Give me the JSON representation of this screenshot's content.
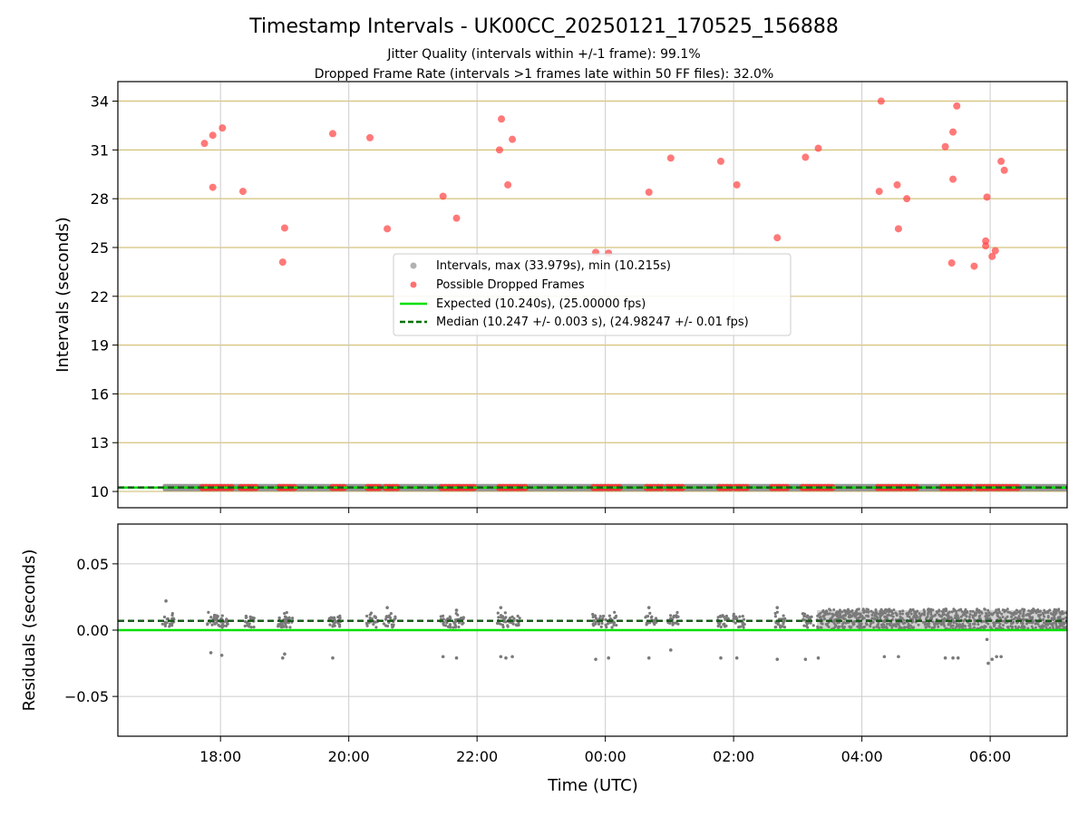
{
  "chart_data": [
    {
      "type": "scatter",
      "title": "Timestamp Intervals - UK00CC_20250121_170525_156888",
      "subtitle_lines": [
        "Jitter Quality (intervals within +/-1 frame): 99.1%",
        "Dropped Frame Rate (intervals >1 frames late within 50 FF files): 32.0%"
      ],
      "ylabel": "Intervals (seconds)",
      "xlim": [
        16.4,
        31.2
      ],
      "ylim": [
        9.0,
        35.2
      ],
      "yticks": [
        10,
        13,
        16,
        19,
        22,
        25,
        28,
        31,
        34
      ],
      "ytick_labels": [
        "10",
        "13",
        "16",
        "19",
        "22",
        "25",
        "28",
        "31",
        "34"
      ],
      "xticks": [
        18,
        20,
        22,
        24,
        26,
        28,
        30
      ],
      "grid": "on",
      "grid_color_y": "#d4c27a",
      "grid_color_x": "#cccccc",
      "legend": {
        "placement": "center",
        "entries": [
          {
            "label": "Intervals, max (33.979s), min (10.215s)",
            "color": "#9e9e9e",
            "marker": "dot"
          },
          {
            "label": "Possible Dropped Frames",
            "color": "#ff4d4d",
            "marker": "dot"
          },
          {
            "label": "Expected (10.240s), (25.00000 fps)",
            "color": "#00e000",
            "marker": "solid-line"
          },
          {
            "label": "Median (10.247 +/- 0.003 s), (24.98247 +/- 0.01 fps)",
            "color": "#007000",
            "marker": "dashed-line"
          }
        ]
      },
      "expected_line": 10.24,
      "median_line": 10.247,
      "normal_band": {
        "from": 17.1,
        "to": 31.2,
        "y": 10.24
      },
      "dropped_frames": [
        [
          17.75,
          31.4
        ],
        [
          17.88,
          31.9
        ],
        [
          18.03,
          32.35
        ],
        [
          17.88,
          28.7
        ],
        [
          18.35,
          28.45
        ],
        [
          18.97,
          24.1
        ],
        [
          19.0,
          26.2
        ],
        [
          19.75,
          32.0
        ],
        [
          20.33,
          31.75
        ],
        [
          20.6,
          26.15
        ],
        [
          21.47,
          28.15
        ],
        [
          21.68,
          26.8
        ],
        [
          22.35,
          31.0
        ],
        [
          22.38,
          32.9
        ],
        [
          22.48,
          28.85
        ],
        [
          22.55,
          31.65
        ],
        [
          23.85,
          24.7
        ],
        [
          24.05,
          24.65
        ],
        [
          24.68,
          28.4
        ],
        [
          25.02,
          30.5
        ],
        [
          25.8,
          30.3
        ],
        [
          26.05,
          28.85
        ],
        [
          26.68,
          25.6
        ],
        [
          27.12,
          30.55
        ],
        [
          27.32,
          31.1
        ],
        [
          28.3,
          34.0
        ],
        [
          28.27,
          28.45
        ],
        [
          28.55,
          28.85
        ],
        [
          28.57,
          26.15
        ],
        [
          28.7,
          28.0
        ],
        [
          29.3,
          31.2
        ],
        [
          29.4,
          24.05
        ],
        [
          29.42,
          32.1
        ],
        [
          29.42,
          29.2
        ],
        [
          29.48,
          33.7
        ],
        [
          29.75,
          23.85
        ],
        [
          29.95,
          28.1
        ],
        [
          29.93,
          25.1
        ],
        [
          29.93,
          25.4
        ],
        [
          30.03,
          24.45
        ],
        [
          30.08,
          24.8
        ],
        [
          30.17,
          30.3
        ],
        [
          30.22,
          29.75
        ]
      ],
      "dropped_band_segments": [
        [
          17.72,
          18.22
        ],
        [
          18.32,
          18.55
        ],
        [
          18.92,
          19.15
        ],
        [
          19.75,
          19.97
        ],
        [
          20.3,
          20.52
        ],
        [
          20.58,
          20.8
        ],
        [
          21.45,
          21.72
        ],
        [
          21.72,
          21.95
        ],
        [
          22.35,
          22.8
        ],
        [
          23.82,
          24.22
        ],
        [
          24.65,
          24.92
        ],
        [
          24.97,
          25.2
        ],
        [
          25.78,
          25.97
        ],
        [
          26.03,
          26.25
        ],
        [
          26.6,
          26.88
        ],
        [
          27.08,
          27.55
        ],
        [
          28.25,
          28.6
        ],
        [
          28.62,
          28.88
        ],
        [
          29.25,
          29.75
        ],
        [
          29.8,
          30.45
        ]
      ]
    },
    {
      "type": "scatter",
      "xlabel": "Time (UTC)",
      "ylabel": "Residuals (seconds)",
      "xlim": [
        16.4,
        31.2
      ],
      "ylim": [
        -0.08,
        0.08
      ],
      "yticks": [
        -0.05,
        0.0,
        0.05
      ],
      "ytick_labels": [
        "−0.05",
        "0.00",
        "0.05"
      ],
      "xticks": [
        18,
        20,
        22,
        24,
        26,
        28,
        30
      ],
      "xtick_labels": [
        "18:00",
        "20:00",
        "22:00",
        "00:00",
        "02:00",
        "04:00",
        "06:00"
      ],
      "grid": "on",
      "grid_color": "#cccccc",
      "expected_line": 0.0,
      "median_line": 0.007,
      "point_color": "#7a7a7a",
      "sparse_clusters": [
        17.15,
        17.85,
        18.02,
        18.4,
        18.95,
        19.0,
        19.75,
        20.33,
        20.6,
        21.47,
        21.68,
        22.37,
        22.55,
        23.85,
        24.05,
        24.68,
        25.02,
        25.8,
        26.05,
        26.68,
        27.12
      ],
      "dense_region": [
        27.3,
        31.2
      ],
      "outliers": [
        [
          17.15,
          0.022
        ],
        [
          17.85,
          -0.017
        ],
        [
          18.02,
          -0.019
        ],
        [
          18.97,
          -0.021
        ],
        [
          19.0,
          -0.018
        ],
        [
          19.75,
          -0.021
        ],
        [
          21.47,
          -0.02
        ],
        [
          21.68,
          -0.021
        ],
        [
          22.37,
          -0.02
        ],
        [
          22.45,
          -0.021
        ],
        [
          22.55,
          -0.02
        ],
        [
          23.85,
          -0.022
        ],
        [
          24.05,
          -0.021
        ],
        [
          24.68,
          -0.021
        ],
        [
          25.02,
          -0.015
        ],
        [
          25.8,
          -0.021
        ],
        [
          26.05,
          -0.021
        ],
        [
          26.68,
          -0.022
        ],
        [
          27.12,
          -0.022
        ],
        [
          27.32,
          -0.021
        ],
        [
          28.35,
          -0.02
        ],
        [
          28.57,
          -0.02
        ],
        [
          29.3,
          -0.021
        ],
        [
          29.42,
          -0.021
        ],
        [
          29.5,
          -0.021
        ],
        [
          29.95,
          -0.007
        ],
        [
          29.97,
          -0.025
        ],
        [
          30.03,
          -0.022
        ],
        [
          30.1,
          -0.02
        ],
        [
          30.17,
          -0.02
        ],
        [
          20.6,
          0.017
        ],
        [
          21.68,
          0.015
        ],
        [
          22.37,
          0.017
        ],
        [
          24.68,
          0.017
        ],
        [
          26.68,
          0.017
        ]
      ]
    }
  ]
}
